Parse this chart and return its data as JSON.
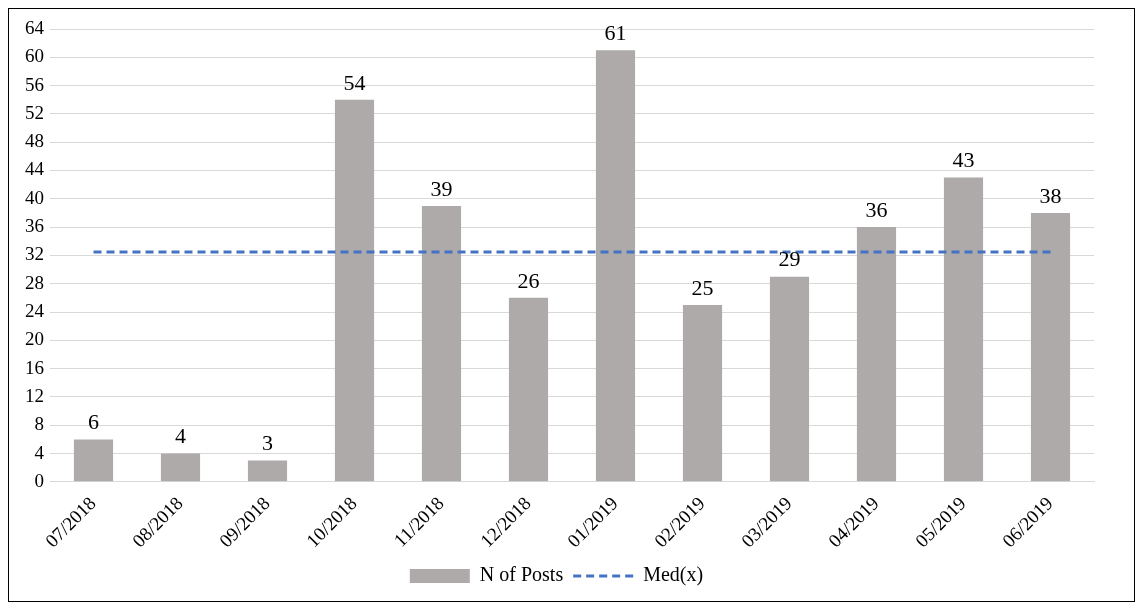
{
  "chart_data": {
    "type": "bar",
    "categories": [
      "07/2018",
      "08/2018",
      "09/2018",
      "10/2018",
      "11/2018",
      "12/2018",
      "01/2019",
      "02/2019",
      "03/2019",
      "04/2019",
      "05/2019",
      "06/2019"
    ],
    "series": [
      {
        "name": "N of Posts",
        "color": "#aeaaaa",
        "values": [
          6,
          4,
          3,
          54,
          39,
          26,
          61,
          25,
          29,
          36,
          43,
          38
        ],
        "value_labels": [
          "6",
          "4",
          "3",
          "54",
          "39",
          "26",
          "61",
          "25",
          "29",
          "36",
          "43",
          "38"
        ]
      },
      {
        "name": "Med(x)",
        "type": "line",
        "color": "#4472c4",
        "line_style": "dashed",
        "marker": "none",
        "values": [
          32.5,
          32.5,
          32.5,
          32.5,
          32.5,
          32.5,
          32.5,
          32.5,
          32.5,
          32.5,
          32.5,
          32.5
        ]
      }
    ],
    "ylim": [
      0,
      64
    ],
    "yticks": [
      0,
      4,
      8,
      12,
      16,
      20,
      24,
      28,
      32,
      36,
      40,
      44,
      48,
      52,
      56,
      60,
      64
    ],
    "grid": "y",
    "legend": "bottom"
  }
}
